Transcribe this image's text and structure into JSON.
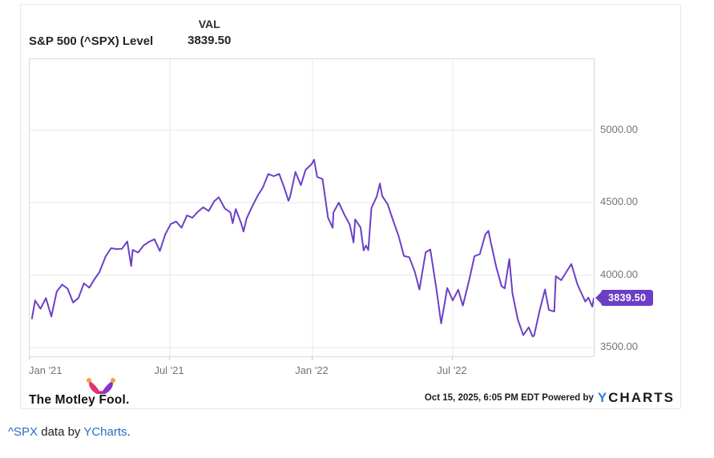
{
  "header": {
    "series_name": "S&P 500 (^SPX) Level",
    "metric_label": "VAL",
    "metric_value": "3839.50"
  },
  "chart_data": {
    "type": "line",
    "title": "S&P 500 (^SPX) Level",
    "line_color": "#6C40C8",
    "grid_color": "#e8e8e8",
    "legend_position": "none",
    "x_range": [
      "2021-01-01",
      "2022-12-30"
    ],
    "ylim": [
      3440,
      5489
    ],
    "y_ticks": [
      {
        "label": "5000.00",
        "value": 5000
      },
      {
        "label": "4500.00",
        "value": 4500
      },
      {
        "label": "4000.00",
        "value": 4000
      },
      {
        "label": "3500.00",
        "value": 3500
      }
    ],
    "x_ticks": [
      {
        "label": "Jan '21",
        "date": "2021-01-01"
      },
      {
        "label": "Jul '21",
        "date": "2021-07-01"
      },
      {
        "label": "Jan '22",
        "date": "2022-01-01"
      },
      {
        "label": "Jul '22",
        "date": "2022-07-01"
      }
    ],
    "badge": {
      "label": "3839.50",
      "value": 3839.5,
      "color": "#6C3EC6"
    },
    "series": [
      {
        "name": "S&P 500 (^SPX) Level",
        "dates": [
          "2021-01-04",
          "2021-01-08",
          "2021-01-15",
          "2021-01-22",
          "2021-01-29",
          "2021-02-05",
          "2021-02-12",
          "2021-02-19",
          "2021-02-26",
          "2021-03-05",
          "2021-03-12",
          "2021-03-19",
          "2021-03-26",
          "2021-04-01",
          "2021-04-09",
          "2021-04-16",
          "2021-04-23",
          "2021-04-30",
          "2021-05-07",
          "2021-05-12",
          "2021-05-14",
          "2021-05-21",
          "2021-05-28",
          "2021-06-04",
          "2021-06-11",
          "2021-06-18",
          "2021-06-25",
          "2021-07-02",
          "2021-07-09",
          "2021-07-16",
          "2021-07-23",
          "2021-07-30",
          "2021-08-06",
          "2021-08-13",
          "2021-08-20",
          "2021-08-27",
          "2021-09-02",
          "2021-09-10",
          "2021-09-17",
          "2021-09-20",
          "2021-09-24",
          "2021-10-01",
          "2021-10-04",
          "2021-10-08",
          "2021-10-15",
          "2021-10-22",
          "2021-10-29",
          "2021-11-05",
          "2021-11-12",
          "2021-11-19",
          "2021-11-26",
          "2021-12-01",
          "2021-12-03",
          "2021-12-10",
          "2021-12-17",
          "2021-12-23",
          "2021-12-31",
          "2022-01-03",
          "2022-01-07",
          "2022-01-14",
          "2022-01-21",
          "2022-01-27",
          "2022-01-28",
          "2022-02-04",
          "2022-02-11",
          "2022-02-18",
          "2022-02-23",
          "2022-02-25",
          "2022-03-04",
          "2022-03-08",
          "2022-03-11",
          "2022-03-14",
          "2022-03-18",
          "2022-03-25",
          "2022-03-29",
          "2022-04-01",
          "2022-04-08",
          "2022-04-14",
          "2022-04-22",
          "2022-04-29",
          "2022-05-06",
          "2022-05-13",
          "2022-05-19",
          "2022-05-27",
          "2022-06-02",
          "2022-06-10",
          "2022-06-16",
          "2022-06-24",
          "2022-07-01",
          "2022-07-08",
          "2022-07-14",
          "2022-07-22",
          "2022-07-29",
          "2022-08-05",
          "2022-08-12",
          "2022-08-16",
          "2022-08-19",
          "2022-08-26",
          "2022-09-02",
          "2022-09-06",
          "2022-09-12",
          "2022-09-16",
          "2022-09-23",
          "2022-09-30",
          "2022-10-07",
          "2022-10-12",
          "2022-10-14",
          "2022-10-21",
          "2022-10-28",
          "2022-11-02",
          "2022-11-09",
          "2022-11-11",
          "2022-11-18",
          "2022-11-25",
          "2022-12-01",
          "2022-12-09",
          "2022-12-16",
          "2022-12-19",
          "2022-12-23",
          "2022-12-28",
          "2022-12-30"
        ],
        "values": [
          3700.65,
          3824.68,
          3768.25,
          3841.47,
          3714.24,
          3886.83,
          3934.83,
          3906.71,
          3811.15,
          3841.94,
          3943.34,
          3913.1,
          3974.54,
          4019.87,
          4128.8,
          4185.47,
          4180.17,
          4181.17,
          4232.6,
          4063.04,
          4173.85,
          4155.86,
          4204.11,
          4229.89,
          4247.44,
          4166.45,
          4280.7,
          4352.34,
          4369.55,
          4327.16,
          4411.79,
          4395.26,
          4436.52,
          4468.0,
          4441.67,
          4509.37,
          4536.95,
          4458.58,
          4432.99,
          4357.73,
          4455.48,
          4357.04,
          4300.46,
          4391.34,
          4471.37,
          4544.9,
          4605.38,
          4697.53,
          4682.85,
          4697.96,
          4594.62,
          4513.04,
          4538.43,
          4712.02,
          4620.64,
          4725.79,
          4766.18,
          4796.56,
          4677.03,
          4662.85,
          4397.94,
          4326.51,
          4431.85,
          4500.53,
          4418.64,
          4348.87,
          4225.5,
          4384.65,
          4328.87,
          4170.7,
          4204.31,
          4173.11,
          4463.12,
          4543.06,
          4631.6,
          4545.86,
          4488.28,
          4392.59,
          4271.78,
          4131.93,
          4123.34,
          4023.89,
          3900.79,
          4158.24,
          4176.82,
          3900.86,
          3666.77,
          3911.74,
          3825.33,
          3899.38,
          3790.38,
          3961.63,
          4130.29,
          4145.19,
          4280.15,
          4305.2,
          4228.48,
          4057.66,
          3924.26,
          3908.19,
          4110.41,
          3873.33,
          3693.23,
          3585.62,
          3639.66,
          3577.03,
          3583.07,
          3752.75,
          3901.06,
          3759.69,
          3748.57,
          3992.93,
          3965.34,
          4026.12,
          4076.57,
          3934.38,
          3852.36,
          3817.66,
          3844.82,
          3783.22,
          3839.5
        ]
      }
    ]
  },
  "footer": {
    "brand": "The Motley Fool.",
    "attribution": "Oct 15, 2025, 6:05 PM EDT Powered by",
    "ycharts_y": "Y",
    "ycharts_rest": "CHARTS"
  },
  "caption": {
    "link_symbol": "^SPX",
    "middle": " data by ",
    "link_source": "YCharts",
    "period": "."
  },
  "colors": {
    "line": "#6C40C8",
    "badge": "#6C3EC6",
    "ycharts_blue": "#2D87D3",
    "hat_pink": "#E4326F",
    "hat_purple": "#8833CC",
    "hat_ball": "#F2A33C",
    "link_blue": "#2B6BC3"
  }
}
